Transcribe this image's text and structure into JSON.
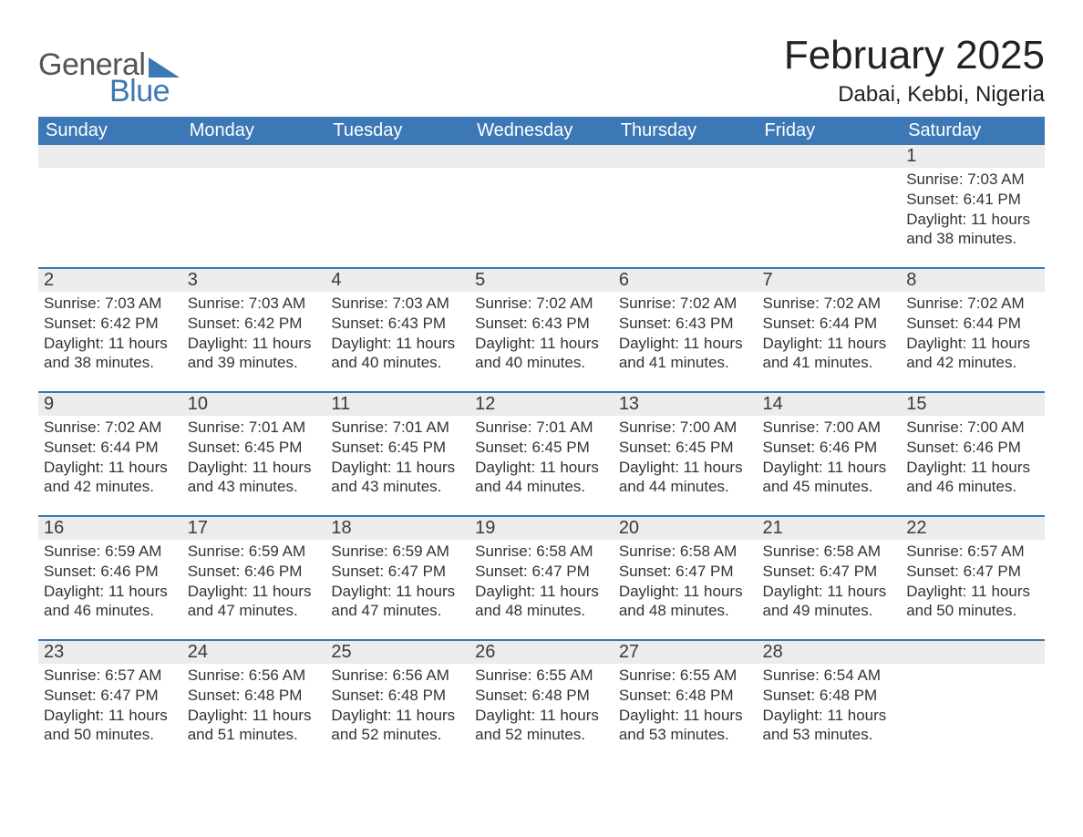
{
  "branding": {
    "logo_word1": "General",
    "logo_word2": "Blue",
    "logo_gray": "#555555",
    "logo_blue": "#3b78b5"
  },
  "title": {
    "month_year": "February 2025",
    "location": "Dabai, Kebbi, Nigeria"
  },
  "calendar": {
    "type": "table",
    "header_bg": "#3b78b5",
    "header_text_color": "#ffffff",
    "daynum_bg": "#ececec",
    "row_border_color": "#3b78b5",
    "text_color": "#222222",
    "font_family": "Arial",
    "header_fontsize": 20,
    "daynum_fontsize": 20,
    "body_fontsize": 17,
    "day_headers": [
      "Sunday",
      "Monday",
      "Tuesday",
      "Wednesday",
      "Thursday",
      "Friday",
      "Saturday"
    ],
    "weeks": [
      [
        {
          "blank": true
        },
        {
          "blank": true
        },
        {
          "blank": true
        },
        {
          "blank": true
        },
        {
          "blank": true
        },
        {
          "blank": true
        },
        {
          "n": "1",
          "sunrise": "Sunrise: 7:03 AM",
          "sunset": "Sunset: 6:41 PM",
          "dl1": "Daylight: 11 hours",
          "dl2": "and 38 minutes."
        }
      ],
      [
        {
          "n": "2",
          "sunrise": "Sunrise: 7:03 AM",
          "sunset": "Sunset: 6:42 PM",
          "dl1": "Daylight: 11 hours",
          "dl2": "and 38 minutes."
        },
        {
          "n": "3",
          "sunrise": "Sunrise: 7:03 AM",
          "sunset": "Sunset: 6:42 PM",
          "dl1": "Daylight: 11 hours",
          "dl2": "and 39 minutes."
        },
        {
          "n": "4",
          "sunrise": "Sunrise: 7:03 AM",
          "sunset": "Sunset: 6:43 PM",
          "dl1": "Daylight: 11 hours",
          "dl2": "and 40 minutes."
        },
        {
          "n": "5",
          "sunrise": "Sunrise: 7:02 AM",
          "sunset": "Sunset: 6:43 PM",
          "dl1": "Daylight: 11 hours",
          "dl2": "and 40 minutes."
        },
        {
          "n": "6",
          "sunrise": "Sunrise: 7:02 AM",
          "sunset": "Sunset: 6:43 PM",
          "dl1": "Daylight: 11 hours",
          "dl2": "and 41 minutes."
        },
        {
          "n": "7",
          "sunrise": "Sunrise: 7:02 AM",
          "sunset": "Sunset: 6:44 PM",
          "dl1": "Daylight: 11 hours",
          "dl2": "and 41 minutes."
        },
        {
          "n": "8",
          "sunrise": "Sunrise: 7:02 AM",
          "sunset": "Sunset: 6:44 PM",
          "dl1": "Daylight: 11 hours",
          "dl2": "and 42 minutes."
        }
      ],
      [
        {
          "n": "9",
          "sunrise": "Sunrise: 7:02 AM",
          "sunset": "Sunset: 6:44 PM",
          "dl1": "Daylight: 11 hours",
          "dl2": "and 42 minutes."
        },
        {
          "n": "10",
          "sunrise": "Sunrise: 7:01 AM",
          "sunset": "Sunset: 6:45 PM",
          "dl1": "Daylight: 11 hours",
          "dl2": "and 43 minutes."
        },
        {
          "n": "11",
          "sunrise": "Sunrise: 7:01 AM",
          "sunset": "Sunset: 6:45 PM",
          "dl1": "Daylight: 11 hours",
          "dl2": "and 43 minutes."
        },
        {
          "n": "12",
          "sunrise": "Sunrise: 7:01 AM",
          "sunset": "Sunset: 6:45 PM",
          "dl1": "Daylight: 11 hours",
          "dl2": "and 44 minutes."
        },
        {
          "n": "13",
          "sunrise": "Sunrise: 7:00 AM",
          "sunset": "Sunset: 6:45 PM",
          "dl1": "Daylight: 11 hours",
          "dl2": "and 44 minutes."
        },
        {
          "n": "14",
          "sunrise": "Sunrise: 7:00 AM",
          "sunset": "Sunset: 6:46 PM",
          "dl1": "Daylight: 11 hours",
          "dl2": "and 45 minutes."
        },
        {
          "n": "15",
          "sunrise": "Sunrise: 7:00 AM",
          "sunset": "Sunset: 6:46 PM",
          "dl1": "Daylight: 11 hours",
          "dl2": "and 46 minutes."
        }
      ],
      [
        {
          "n": "16",
          "sunrise": "Sunrise: 6:59 AM",
          "sunset": "Sunset: 6:46 PM",
          "dl1": "Daylight: 11 hours",
          "dl2": "and 46 minutes."
        },
        {
          "n": "17",
          "sunrise": "Sunrise: 6:59 AM",
          "sunset": "Sunset: 6:46 PM",
          "dl1": "Daylight: 11 hours",
          "dl2": "and 47 minutes."
        },
        {
          "n": "18",
          "sunrise": "Sunrise: 6:59 AM",
          "sunset": "Sunset: 6:47 PM",
          "dl1": "Daylight: 11 hours",
          "dl2": "and 47 minutes."
        },
        {
          "n": "19",
          "sunrise": "Sunrise: 6:58 AM",
          "sunset": "Sunset: 6:47 PM",
          "dl1": "Daylight: 11 hours",
          "dl2": "and 48 minutes."
        },
        {
          "n": "20",
          "sunrise": "Sunrise: 6:58 AM",
          "sunset": "Sunset: 6:47 PM",
          "dl1": "Daylight: 11 hours",
          "dl2": "and 48 minutes."
        },
        {
          "n": "21",
          "sunrise": "Sunrise: 6:58 AM",
          "sunset": "Sunset: 6:47 PM",
          "dl1": "Daylight: 11 hours",
          "dl2": "and 49 minutes."
        },
        {
          "n": "22",
          "sunrise": "Sunrise: 6:57 AM",
          "sunset": "Sunset: 6:47 PM",
          "dl1": "Daylight: 11 hours",
          "dl2": "and 50 minutes."
        }
      ],
      [
        {
          "n": "23",
          "sunrise": "Sunrise: 6:57 AM",
          "sunset": "Sunset: 6:47 PM",
          "dl1": "Daylight: 11 hours",
          "dl2": "and 50 minutes."
        },
        {
          "n": "24",
          "sunrise": "Sunrise: 6:56 AM",
          "sunset": "Sunset: 6:48 PM",
          "dl1": "Daylight: 11 hours",
          "dl2": "and 51 minutes."
        },
        {
          "n": "25",
          "sunrise": "Sunrise: 6:56 AM",
          "sunset": "Sunset: 6:48 PM",
          "dl1": "Daylight: 11 hours",
          "dl2": "and 52 minutes."
        },
        {
          "n": "26",
          "sunrise": "Sunrise: 6:55 AM",
          "sunset": "Sunset: 6:48 PM",
          "dl1": "Daylight: 11 hours",
          "dl2": "and 52 minutes."
        },
        {
          "n": "27",
          "sunrise": "Sunrise: 6:55 AM",
          "sunset": "Sunset: 6:48 PM",
          "dl1": "Daylight: 11 hours",
          "dl2": "and 53 minutes."
        },
        {
          "n": "28",
          "sunrise": "Sunrise: 6:54 AM",
          "sunset": "Sunset: 6:48 PM",
          "dl1": "Daylight: 11 hours",
          "dl2": "and 53 minutes."
        },
        {
          "blank": true
        }
      ]
    ]
  }
}
